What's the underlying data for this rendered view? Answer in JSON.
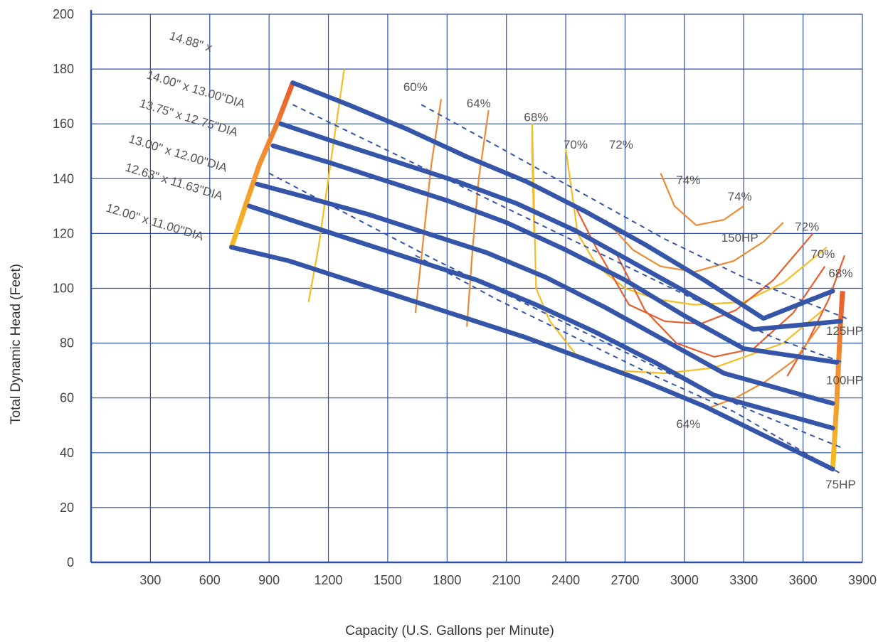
{
  "chart_data": {
    "type": "line",
    "title": "",
    "xlabel": "Capacity (U.S. Gallons per Minute)",
    "ylabel": "Total Dynamic Head (Feet)",
    "xlim": [
      0,
      3900
    ],
    "ylim": [
      0,
      200
    ],
    "x_ticks": [
      300,
      600,
      900,
      1200,
      1500,
      1800,
      2100,
      2400,
      2700,
      3000,
      3300,
      3600,
      3900
    ],
    "y_ticks": [
      0,
      20,
      40,
      60,
      80,
      100,
      120,
      140,
      160,
      180,
      200
    ],
    "grid": true,
    "colors": {
      "grid": "#2f50a8",
      "curve": "#3556a8",
      "eff_yellow": "#f5bd22",
      "eff_orange": "#f08a32",
      "eff_red": "#e85d2c",
      "label": "#444444"
    },
    "impeller_curves": [
      {
        "label": "14.00\" x 13.00\"DIA",
        "points": [
          [
            1020,
            175
          ],
          [
            1300,
            167
          ],
          [
            1600,
            158
          ],
          [
            1900,
            148
          ],
          [
            2200,
            139
          ],
          [
            2500,
            128
          ],
          [
            2800,
            116
          ],
          [
            3100,
            103
          ],
          [
            3400,
            89
          ],
          [
            3750,
            99
          ]
        ]
      },
      {
        "label": "13.75\" x 12.75\"DIA",
        "points": [
          [
            960,
            160
          ],
          [
            1250,
            153
          ],
          [
            1550,
            146
          ],
          [
            1850,
            139
          ],
          [
            2150,
            131
          ],
          [
            2450,
            121
          ],
          [
            2750,
            109
          ],
          [
            3050,
            97
          ],
          [
            3350,
            85
          ],
          [
            3790,
            88
          ]
        ]
      },
      {
        "label": "13.00\" x 12.00\"DIA",
        "points": [
          [
            920,
            152
          ],
          [
            1200,
            146
          ],
          [
            1500,
            139
          ],
          [
            1800,
            132
          ],
          [
            2100,
            124
          ],
          [
            2400,
            114
          ],
          [
            2700,
            103
          ],
          [
            3000,
            90
          ],
          [
            3300,
            78
          ],
          [
            3770,
            73
          ]
        ]
      },
      {
        "label": "12.63\" x 11.63\"DIA",
        "points": [
          [
            840,
            138
          ],
          [
            1100,
            133
          ],
          [
            1400,
            127
          ],
          [
            1700,
            120
          ],
          [
            2000,
            113
          ],
          [
            2300,
            104
          ],
          [
            2600,
            93
          ],
          [
            2900,
            81
          ],
          [
            3200,
            69
          ],
          [
            3750,
            58
          ]
        ]
      },
      {
        "label": "12.00\" x 11.00\"DIA",
        "points": [
          [
            800,
            130
          ],
          [
            1050,
            124
          ],
          [
            1350,
            117
          ],
          [
            1650,
            110
          ],
          [
            1950,
            103
          ],
          [
            2250,
            94
          ],
          [
            2550,
            84
          ],
          [
            2850,
            73
          ],
          [
            3150,
            61
          ],
          [
            3750,
            49
          ]
        ]
      },
      {
        "label": "",
        "points": [
          [
            710,
            115
          ],
          [
            1000,
            110
          ],
          [
            1300,
            103
          ],
          [
            1600,
            96
          ],
          [
            1900,
            89
          ],
          [
            2200,
            82
          ],
          [
            2500,
            74
          ],
          [
            2800,
            66
          ],
          [
            3100,
            57
          ],
          [
            3750,
            34
          ]
        ]
      }
    ],
    "truncated_label": "14.88\" x",
    "horsepower_lines": [
      {
        "label": "150HP",
        "points": [
          [
            1670,
            167
          ],
          [
            2100,
            150
          ],
          [
            2500,
            134
          ],
          [
            2900,
            118
          ],
          [
            3300,
            104
          ],
          [
            3820,
            89
          ]
        ],
        "label_at": [
          3280,
          117
        ]
      },
      {
        "label": "125HP",
        "points": [
          [
            1020,
            167
          ],
          [
            1450,
            152
          ],
          [
            1850,
            138
          ],
          [
            2250,
            124
          ],
          [
            2650,
            110
          ],
          [
            3050,
            96
          ],
          [
            3450,
            82
          ],
          [
            3800,
            73
          ]
        ],
        "label_at": [
          3810,
          83
        ]
      },
      {
        "label": "100HP",
        "points": [
          [
            900,
            142
          ],
          [
            1350,
            125
          ],
          [
            1750,
            110
          ],
          [
            2150,
            96
          ],
          [
            2550,
            82
          ],
          [
            2950,
            68
          ],
          [
            3350,
            55
          ],
          [
            3790,
            42
          ]
        ],
        "label_at": [
          3810,
          65
        ]
      },
      {
        "label": "75HP",
        "points": [
          [
            1640,
            112
          ],
          [
            2050,
            96
          ],
          [
            2450,
            82
          ],
          [
            2850,
            68
          ],
          [
            3250,
            55
          ],
          [
            3800,
            32
          ]
        ],
        "label_at": [
          3790,
          27
        ]
      }
    ],
    "efficiency_curves": [
      {
        "label": "60%",
        "color": "yellow",
        "points": [
          [
            1100,
            95
          ],
          [
            1150,
            115
          ],
          [
            1200,
            140
          ],
          [
            1250,
            165
          ],
          [
            1280,
            180
          ]
        ],
        "label_at": [
          1640,
          172
        ]
      },
      {
        "label": "64%",
        "color": "orange",
        "points": [
          [
            1640,
            91
          ],
          [
            1680,
            118
          ],
          [
            1720,
            145
          ],
          [
            1770,
            169
          ]
        ],
        "label_at": [
          1960,
          166
        ]
      },
      {
        "label": "68%",
        "color": "orange",
        "points": [
          [
            1900,
            86
          ],
          [
            1930,
            115
          ],
          [
            1960,
            140
          ],
          [
            2010,
            165
          ]
        ],
        "label_at": [
          2250,
          161
        ]
      },
      {
        "label": "70%",
        "color": "yellow",
        "points": [
          [
            2240,
            120
          ],
          [
            2230,
            150
          ],
          [
            2230,
            160
          ],
          [
            2250,
            100
          ],
          [
            2320,
            88
          ],
          [
            2450,
            76
          ],
          [
            2650,
            70
          ],
          [
            2900,
            69
          ],
          [
            3150,
            71
          ],
          [
            3500,
            80
          ],
          [
            3700,
            92
          ]
        ],
        "label_at": [
          2450,
          151
        ]
      },
      {
        "label": "72%",
        "color": "yellow",
        "points": [
          [
            2400,
            151
          ],
          [
            2460,
            120
          ],
          [
            2560,
            108
          ],
          [
            2700,
            100
          ],
          [
            2860,
            96
          ],
          [
            3050,
            94
          ],
          [
            3300,
            95
          ],
          [
            3500,
            102
          ],
          [
            3720,
            115
          ]
        ],
        "label_at": [
          2680,
          151
        ]
      },
      {
        "label": "74%",
        "color": "orange",
        "points": [
          [
            2880,
            142
          ],
          [
            2950,
            130
          ],
          [
            3060,
            123
          ],
          [
            3200,
            125
          ],
          [
            3300,
            130
          ]
        ],
        "label_at": [
          3020,
          138
        ]
      },
      {
        "label": "74%",
        "color": "orange",
        "points": [
          [
            2600,
            125
          ],
          [
            2740,
            114
          ],
          [
            2880,
            108
          ],
          [
            3050,
            106
          ],
          [
            3250,
            110
          ],
          [
            3400,
            117
          ],
          [
            3500,
            124
          ]
        ],
        "label_at": [
          3280,
          132
        ]
      },
      {
        "label": "72%",
        "color": "red",
        "points": [
          [
            2440,
            131
          ],
          [
            2560,
            114
          ],
          [
            2720,
            94
          ],
          [
            2900,
            88
          ],
          [
            3080,
            87
          ],
          [
            3260,
            92
          ],
          [
            3450,
            103
          ],
          [
            3650,
            120
          ]
        ],
        "label_at": [
          3620,
          121
        ]
      },
      {
        "label": "70%",
        "color": "red",
        "points": [
          [
            2660,
            112
          ],
          [
            2800,
            92
          ],
          [
            2960,
            80
          ],
          [
            3150,
            75
          ],
          [
            3350,
            78
          ],
          [
            3550,
            91
          ],
          [
            3710,
            108
          ]
        ],
        "label_at": [
          3700,
          111
        ]
      },
      {
        "label": "68%",
        "color": "red",
        "points": [
          [
            3520,
            68
          ],
          [
            3620,
            80
          ],
          [
            3730,
            96
          ],
          [
            3810,
            112
          ]
        ],
        "label_at": [
          3790,
          104
        ]
      },
      {
        "label": "64%",
        "color": "orange",
        "points": [
          [
            3110,
            56
          ],
          [
            3260,
            60
          ],
          [
            3410,
            66
          ],
          [
            3560,
            74
          ],
          [
            3700,
            88
          ]
        ],
        "label_at": [
          3020,
          49
        ]
      }
    ],
    "head_range_bars": [
      {
        "points": [
          [
            710,
            115
          ],
          [
            780,
            130
          ],
          [
            850,
            145
          ],
          [
            940,
            160
          ],
          [
            1020,
            175
          ]
        ]
      },
      {
        "points": [
          [
            3750,
            34
          ],
          [
            3770,
            58
          ],
          [
            3780,
            73
          ],
          [
            3790,
            88
          ],
          [
            3800,
            99
          ]
        ]
      }
    ]
  }
}
